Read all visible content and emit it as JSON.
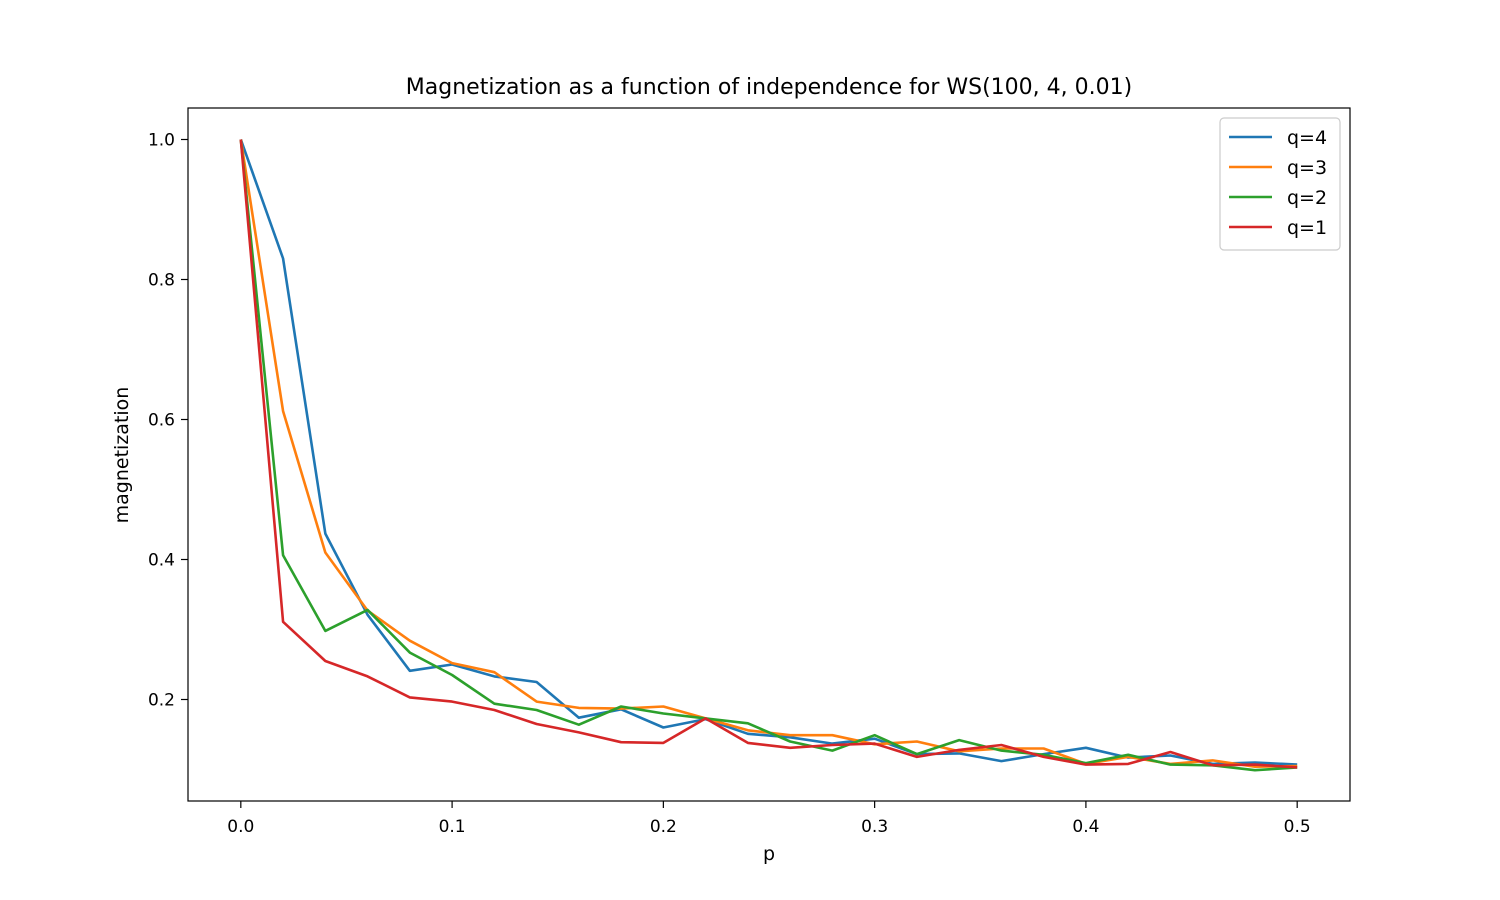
{
  "chart_data": {
    "type": "line",
    "title": "Magnetization as a function of independence for WS(100, 4, 0.01)",
    "xlabel": "p",
    "ylabel": "magnetization",
    "xlim": [
      -0.025,
      0.525
    ],
    "ylim": [
      0.055,
      1.045
    ],
    "xticks": [
      0.0,
      0.1,
      0.2,
      0.3,
      0.4,
      0.5
    ],
    "xtick_labels": [
      "0.0",
      "0.1",
      "0.2",
      "0.3",
      "0.4",
      "0.5"
    ],
    "yticks": [
      0.2,
      0.4,
      0.6,
      0.8,
      1.0
    ],
    "ytick_labels": [
      "0.2",
      "0.4",
      "0.6",
      "0.8",
      "1.0"
    ],
    "grid": false,
    "legend_position": "top-right",
    "x": [
      0.0,
      0.02,
      0.04,
      0.06,
      0.08,
      0.1,
      0.12,
      0.14,
      0.16,
      0.18,
      0.2,
      0.22,
      0.24,
      0.26,
      0.28,
      0.3,
      0.32,
      0.34,
      0.36,
      0.38,
      0.4,
      0.42,
      0.44,
      0.46,
      0.48,
      0.5
    ],
    "series": [
      {
        "name": "q=4",
        "color": "#1f77b4",
        "values": [
          1.0,
          0.83,
          0.437,
          0.321,
          0.241,
          0.25,
          0.233,
          0.225,
          0.174,
          0.186,
          0.16,
          0.172,
          0.151,
          0.146,
          0.137,
          0.144,
          0.122,
          0.123,
          0.112,
          0.122,
          0.131,
          0.117,
          0.12,
          0.108,
          0.11,
          0.107
        ]
      },
      {
        "name": "q=3",
        "color": "#ff7f0e",
        "values": [
          1.0,
          0.612,
          0.41,
          0.327,
          0.284,
          0.252,
          0.239,
          0.197,
          0.188,
          0.187,
          0.19,
          0.173,
          0.156,
          0.149,
          0.149,
          0.136,
          0.14,
          0.126,
          0.13,
          0.13,
          0.108,
          0.118,
          0.108,
          0.113,
          0.104,
          0.105
        ]
      },
      {
        "name": "q=2",
        "color": "#2ca02c",
        "values": [
          1.0,
          0.406,
          0.298,
          0.328,
          0.267,
          0.235,
          0.194,
          0.185,
          0.164,
          0.19,
          0.18,
          0.173,
          0.166,
          0.14,
          0.127,
          0.149,
          0.122,
          0.142,
          0.127,
          0.121,
          0.109,
          0.121,
          0.107,
          0.106,
          0.099,
          0.103
        ]
      },
      {
        "name": "q=1",
        "color": "#d62728",
        "values": [
          1.0,
          0.311,
          0.255,
          0.233,
          0.203,
          0.197,
          0.185,
          0.165,
          0.153,
          0.139,
          0.138,
          0.173,
          0.138,
          0.131,
          0.135,
          0.137,
          0.118,
          0.128,
          0.135,
          0.118,
          0.107,
          0.108,
          0.125,
          0.106,
          0.107,
          0.103
        ]
      }
    ]
  }
}
